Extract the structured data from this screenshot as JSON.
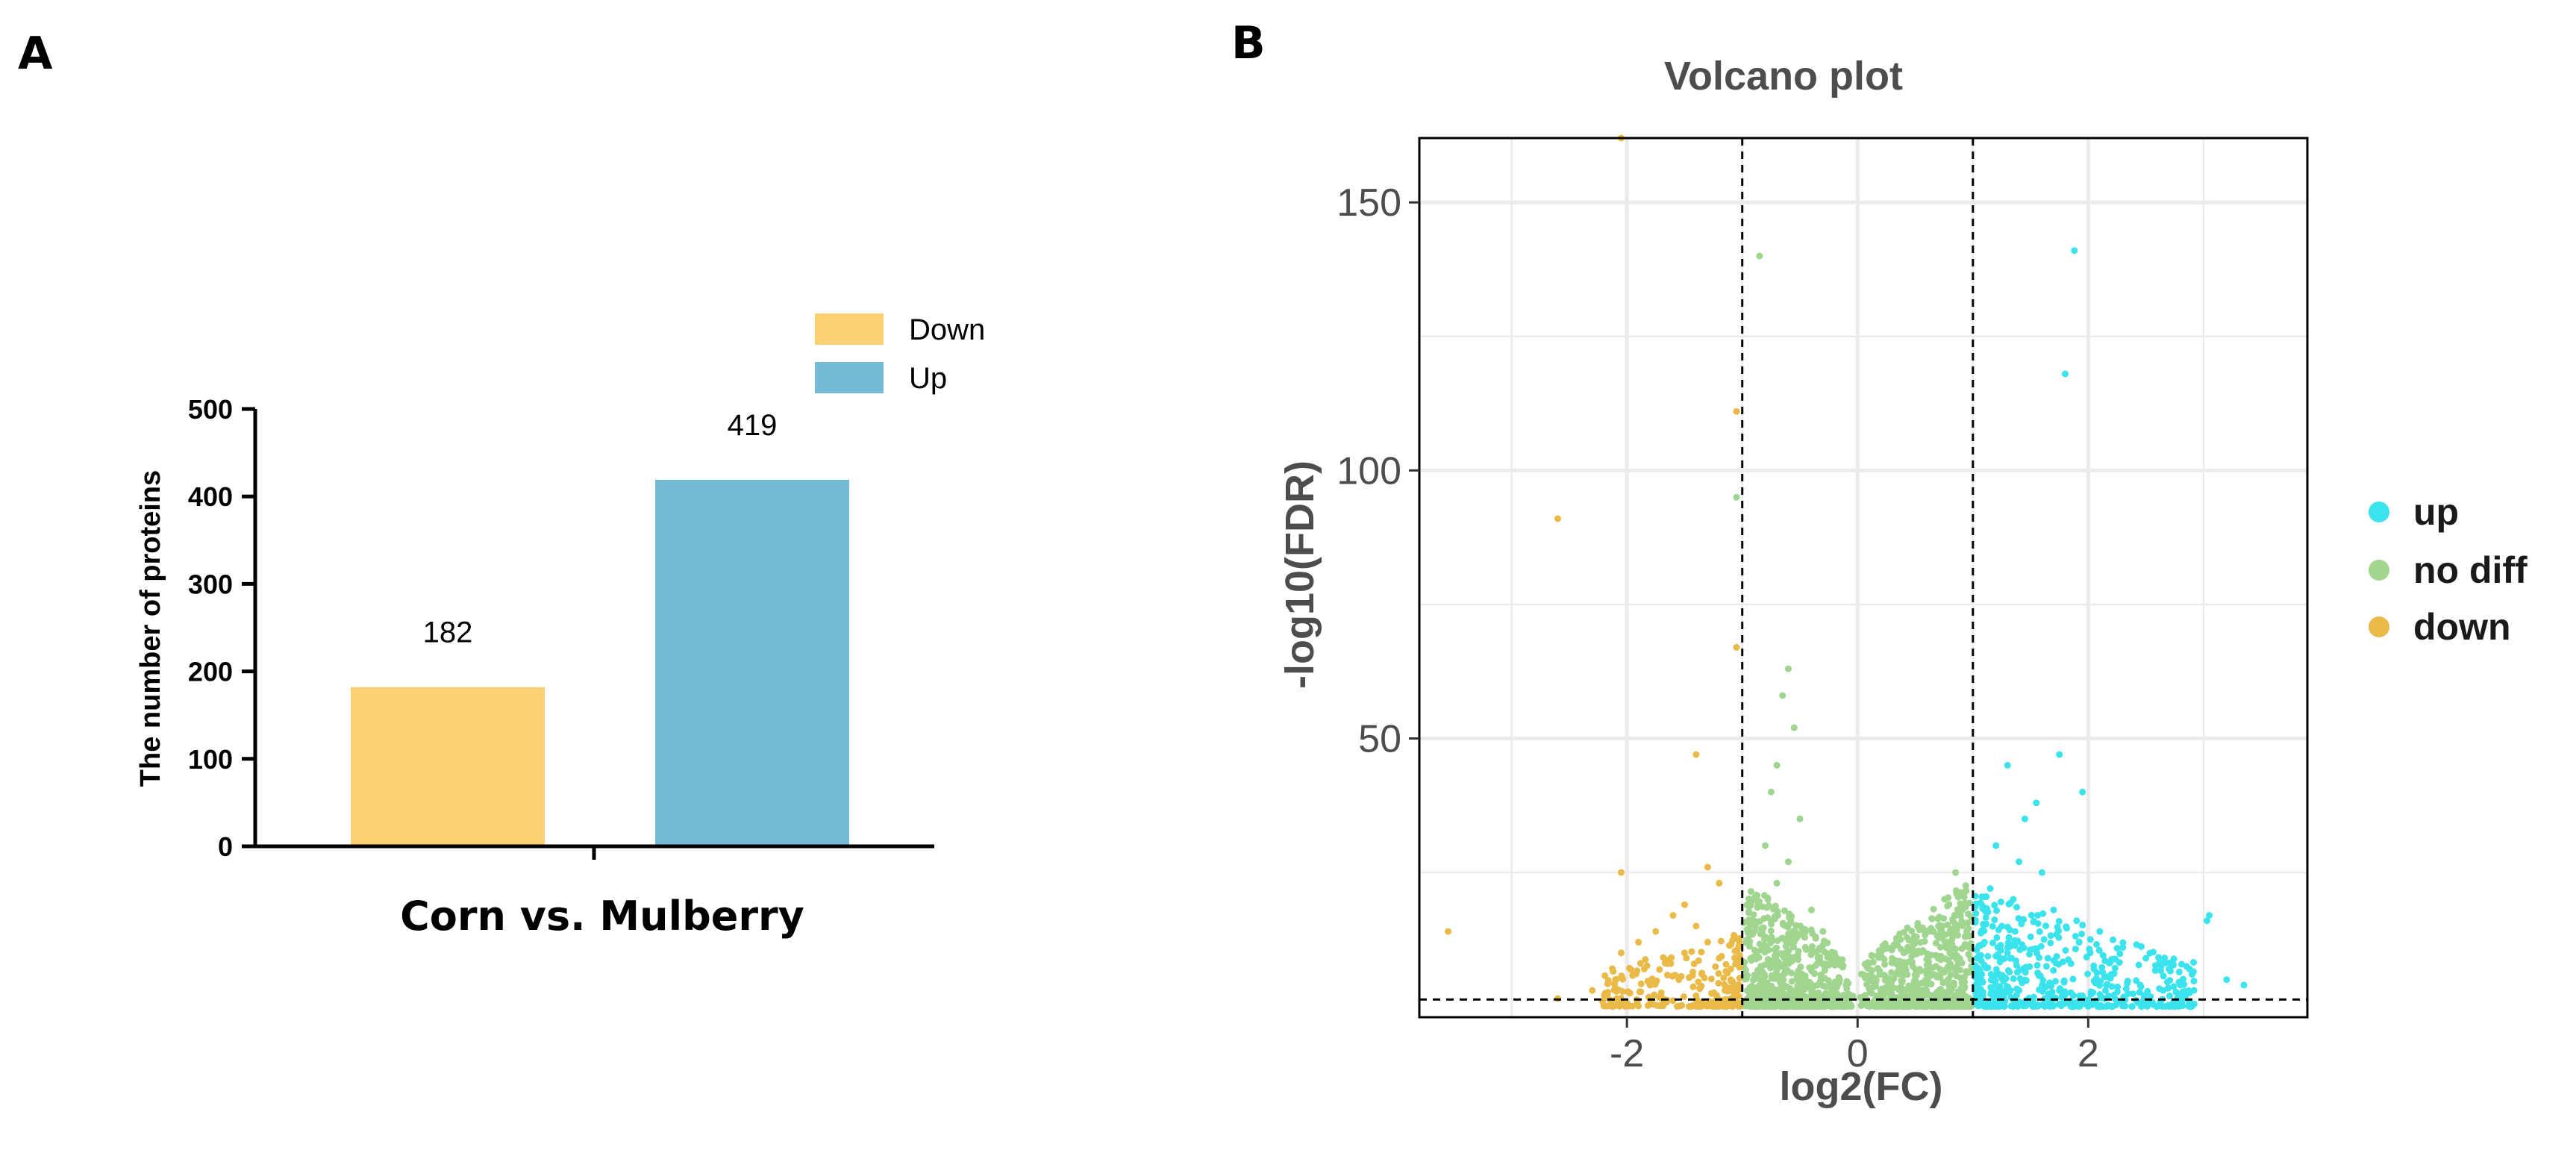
{
  "figure": {
    "panel_a_label": "A",
    "panel_b_label": "B"
  },
  "colors": {
    "down_bar": "#FDD073",
    "up_bar": "#74BBD6",
    "volcano_up": "#3BE3EC",
    "volcano_nodiff": "#9FD58E",
    "volcano_down": "#E9BA48",
    "grid": "#EBEBEB",
    "axis": "#000000",
    "gray_text": "#4D4D4D"
  },
  "chart_data": [
    {
      "id": "bar",
      "type": "bar",
      "title": "",
      "xlabel": "Corn vs. Mulberry",
      "ylabel": "The number of proteins",
      "ylim": [
        0,
        500
      ],
      "yticks": [
        0,
        100,
        200,
        300,
        400,
        500
      ],
      "categories": [
        "Down",
        "Up"
      ],
      "values": [
        182,
        419
      ],
      "data_labels": [
        "182",
        "419"
      ],
      "legend": {
        "position": "top-right",
        "entries": [
          {
            "label": "Down",
            "color_key": "down_bar"
          },
          {
            "label": "Up",
            "color_key": "up_bar"
          }
        ]
      }
    },
    {
      "id": "volcano",
      "type": "scatter",
      "title": "Volcano plot",
      "xlabel": "log2(FC)",
      "ylabel": "-log10(FDR)",
      "xlim": [
        -3.8,
        3.9
      ],
      "ylim": [
        -2,
        162
      ],
      "xticks": [
        -2,
        0,
        2
      ],
      "yticks": [
        50,
        100,
        150
      ],
      "thresholds": {
        "log2fc": [
          -1,
          1
        ],
        "neg_log10_fdr": 1.3
      },
      "legend": {
        "position": "right",
        "entries": [
          {
            "label": "up",
            "color_key": "volcano_up"
          },
          {
            "label": "no diff",
            "color_key": "volcano_nodiff"
          },
          {
            "label": "down",
            "color_key": "volcano_down"
          }
        ]
      },
      "series": [
        {
          "name": "up",
          "color_key": "volcano_up",
          "points": [
            [
              1.88,
              141
            ],
            [
              1.8,
              118
            ],
            [
              1.75,
              47
            ],
            [
              1.3,
              45
            ],
            [
              1.95,
              40
            ],
            [
              1.55,
              38
            ],
            [
              1.45,
              35
            ],
            [
              3.05,
              17
            ],
            [
              3.03,
              16
            ],
            [
              1.2,
              30
            ],
            [
              1.4,
              27
            ],
            [
              1.6,
              25
            ],
            [
              1.15,
              22
            ],
            [
              1.35,
              20
            ],
            [
              1.7,
              18
            ],
            [
              1.9,
              16
            ],
            [
              2.1,
              14
            ],
            [
              1.25,
              15
            ],
            [
              1.5,
              13
            ],
            [
              2.3,
              11
            ],
            [
              2.5,
              9
            ],
            [
              2.7,
              7
            ],
            [
              2.9,
              6
            ],
            [
              3.2,
              5
            ],
            [
              1.1,
              12
            ],
            [
              1.3,
              10
            ],
            [
              1.65,
              9
            ],
            [
              1.85,
              8
            ],
            [
              2.05,
              7
            ],
            [
              2.2,
              6
            ],
            [
              2.45,
              4
            ],
            [
              2.65,
              3
            ],
            [
              2.8,
              4
            ],
            [
              3.35,
              4
            ],
            [
              1.05,
              5
            ],
            [
              1.2,
              4
            ],
            [
              1.4,
              3
            ],
            [
              1.6,
              4
            ],
            [
              1.75,
              3
            ],
            [
              1.95,
              2
            ],
            [
              2.15,
              3
            ]
          ]
        },
        {
          "name": "no diff",
          "color_key": "volcano_nodiff",
          "points": [
            [
              -0.85,
              140
            ],
            [
              -1.05,
              95
            ],
            [
              -0.6,
              63
            ],
            [
              -0.65,
              58
            ],
            [
              -0.55,
              52
            ],
            [
              -0.7,
              45
            ],
            [
              -0.75,
              40
            ],
            [
              -0.5,
              35
            ],
            [
              -0.8,
              30
            ],
            [
              -0.6,
              27
            ],
            [
              -0.7,
              23
            ],
            [
              -0.9,
              20
            ],
            [
              -0.4,
              18
            ],
            [
              -0.3,
              14
            ],
            [
              -0.2,
              10
            ],
            [
              0.1,
              5
            ],
            [
              0.3,
              9
            ],
            [
              0.5,
              12
            ],
            [
              0.7,
              15
            ],
            [
              0.9,
              18
            ],
            [
              0.85,
              25
            ],
            [
              0.65,
              14
            ],
            [
              0.4,
              7
            ],
            [
              -0.1,
              4
            ],
            [
              -0.35,
              8
            ],
            [
              -0.55,
              12
            ],
            [
              -0.75,
              16
            ],
            [
              0.2,
              3
            ],
            [
              0.6,
              6
            ],
            [
              0.8,
              10
            ]
          ]
        },
        {
          "name": "down",
          "color_key": "volcano_down",
          "points": [
            [
              -2.05,
              162
            ],
            [
              -1.05,
              111
            ],
            [
              -2.6,
              91
            ],
            [
              -1.05,
              67
            ],
            [
              -1.4,
              47
            ],
            [
              -2.05,
              25
            ],
            [
              -1.3,
              26
            ],
            [
              -3.55,
              14
            ],
            [
              -1.2,
              23
            ],
            [
              -1.5,
              19
            ],
            [
              -1.6,
              17
            ],
            [
              -1.4,
              15
            ],
            [
              -1.75,
              14
            ],
            [
              -1.9,
              12
            ],
            [
              -2.05,
              10
            ],
            [
              -1.3,
              12
            ],
            [
              -1.5,
              10
            ],
            [
              -1.2,
              9
            ],
            [
              -1.65,
              8
            ],
            [
              -1.85,
              7
            ],
            [
              -2.1,
              5
            ],
            [
              -1.1,
              7
            ],
            [
              -1.35,
              6
            ],
            [
              -1.55,
              5
            ],
            [
              -1.8,
              4
            ],
            [
              -2.3,
              3
            ],
            [
              -2.6,
              1.5
            ],
            [
              -1.15,
              3
            ],
            [
              -1.4,
              2
            ]
          ]
        }
      ]
    }
  ]
}
